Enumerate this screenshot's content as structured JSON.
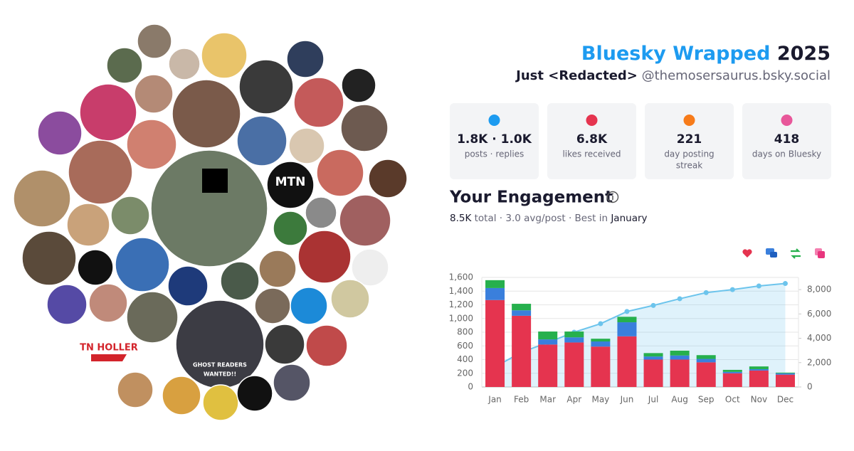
{
  "header": {
    "title": "Bluesky Wrapped",
    "year": "2025",
    "name": "Just <Redacted>",
    "handle": "@themosersaurus.bsky.social"
  },
  "collage_texts": {
    "mtn": "MTN",
    "tn_holler": "TN HOLLER",
    "ghost": "GHOST READERS",
    "wanted": "WANTED!!"
  },
  "stats": [
    {
      "value": "1.8K · 1.0K",
      "label": [
        "posts · replies"
      ]
    },
    {
      "value": "6.8K",
      "label": [
        "likes received"
      ]
    },
    {
      "value": "221",
      "label": [
        "day posting",
        "streak"
      ]
    },
    {
      "value": "418",
      "label": [
        "days on Bluesky"
      ]
    }
  ],
  "engagement": {
    "heading": "Your Engagement",
    "total": "8.5K",
    "middle": " total · 3.0 avg/post · Best in ",
    "best": "January"
  },
  "chart_data": {
    "type": "stacked-bar-line",
    "categories": [
      "Jan",
      "Feb",
      "Mar",
      "Apr",
      "May",
      "Jun",
      "Jul",
      "Aug",
      "Sep",
      "Oct",
      "Nov",
      "Dec"
    ],
    "series": [
      {
        "color": "#e5344f",
        "values": [
          1270,
          1040,
          620,
          650,
          590,
          740,
          400,
          400,
          360,
          200,
          240,
          180
        ]
      },
      {
        "color": "#3a7fdc",
        "values": [
          175,
          80,
          75,
          75,
          75,
          205,
          45,
          60,
          50,
          20,
          20,
          20
        ]
      },
      {
        "color": "#26b04d",
        "values": [
          115,
          95,
          115,
          85,
          40,
          80,
          50,
          70,
          55,
          30,
          40,
          10
        ]
      },
      {
        "color": "#6cc4ec",
        "axis": "y2",
        "values": [
          1650,
          2850,
          3650,
          4500,
          5200,
          6200,
          6700,
          7250,
          7750,
          8000,
          8300,
          8500
        ]
      }
    ],
    "ylim": [
      0,
      1600
    ],
    "yticks": [
      0,
      200,
      400,
      600,
      800,
      {
        "value": 1000,
        "label": "1,000"
      },
      {
        "value": 1200,
        "label": "1,200"
      },
      {
        "value": 1400,
        "label": "1,400"
      },
      {
        "value": 1600,
        "label": "1,600"
      }
    ],
    "y2lim": [
      0,
      9000
    ],
    "y2ticks": [
      0,
      {
        "value": 2000,
        "label": "2,000"
      },
      {
        "value": 4000,
        "label": "4,000"
      },
      {
        "value": 6000,
        "label": "6,000"
      },
      {
        "value": 8000,
        "label": "8,000"
      }
    ],
    "grid": true
  }
}
